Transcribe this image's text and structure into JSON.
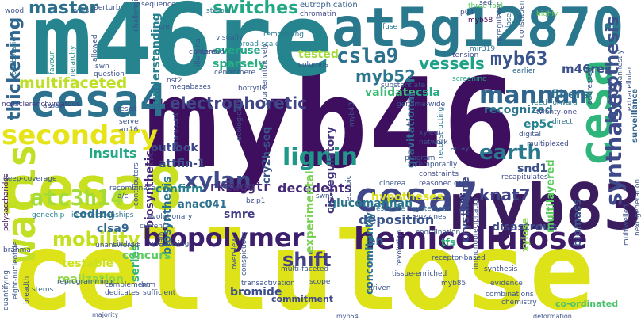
{
  "words": [
    {
      "text": "cellulose",
      "color": "#dde318"
    },
    {
      "text": "myb46",
      "color": "#3e0f5e"
    },
    {
      "text": "m46re",
      "color": "#25848e"
    },
    {
      "text": "at5g12870",
      "color": "#2a788e"
    },
    {
      "text": "myb83",
      "color": "#3b1c5e"
    },
    {
      "text": "cesa8",
      "color": "#c8e020"
    },
    {
      "text": "cesa4",
      "color": "#2c728e"
    },
    {
      "text": "cesa7",
      "color": "#3f4788"
    },
    {
      "text": "cesa",
      "color": "#2fb47c"
    },
    {
      "text": "walls",
      "color": "#c2df23"
    },
    {
      "text": "hemicellulose",
      "color": "#3d1b66"
    },
    {
      "text": "biopolymer",
      "color": "#3e1f6d"
    },
    {
      "text": "secondary",
      "color": "#e6e419"
    },
    {
      "text": "atc3h14",
      "color": "#a5db36"
    },
    {
      "text": "lignin",
      "color": "#1f978b"
    },
    {
      "text": "xylan",
      "color": "#3e4a89"
    },
    {
      "text": "synthases",
      "color": "#3e4989"
    },
    {
      "text": "electrophoretic",
      "color": "#404688"
    },
    {
      "text": "multifaceted",
      "color": "#bddf26"
    },
    {
      "text": "master",
      "color": "#2d708e"
    },
    {
      "text": "switches",
      "color": "#22a884"
    },
    {
      "text": "csla9",
      "color": "#2c718e"
    },
    {
      "text": "myb63",
      "color": "#3a548c"
    },
    {
      "text": "vessels",
      "color": "#1fa188"
    },
    {
      "text": "thickening",
      "color": "#31678e"
    },
    {
      "text": "mannan",
      "color": "#32658e"
    },
    {
      "text": "hypothesis",
      "color": "#3b528b"
    },
    {
      "text": "earth",
      "color": "#2a788e"
    },
    {
      "text": "knat7",
      "color": "#404387"
    },
    {
      "text": "mobility",
      "color": "#c5e021"
    },
    {
      "text": "shift",
      "color": "#423f85"
    },
    {
      "text": "myb52",
      "color": "#2b758e"
    },
    {
      "text": "m46res",
      "color": "#3c4f8a"
    },
    {
      "text": "tested",
      "color": "#a2da37"
    },
    {
      "text": "fibers",
      "color": "#2e6f8e"
    },
    {
      "text": "ep5c",
      "color": "#25848e"
    },
    {
      "text": "hypotheses",
      "color": "#dde318"
    },
    {
      "text": "deposition",
      "color": "#3a548c"
    },
    {
      "text": "decedents",
      "color": "#472d7b"
    },
    {
      "text": "rktwggtr",
      "color": "#472c7a"
    },
    {
      "text": "coding",
      "color": "#2e6d8e"
    },
    {
      "text": "clsa9",
      "color": "#31678e"
    },
    {
      "text": "testable",
      "color": "#cde11d"
    },
    {
      "text": "confirm",
      "color": "#26818e"
    },
    {
      "text": "outlook",
      "color": "#3e4989"
    },
    {
      "text": "insults",
      "color": "#22a884"
    },
    {
      "text": "attfin-1",
      "color": "#3d4d8a"
    },
    {
      "text": "glucomannan",
      "color": "#2a778e"
    },
    {
      "text": "snd1",
      "color": "#3b528b"
    },
    {
      "text": "crystalline",
      "color": "#3f4889"
    },
    {
      "text": "disastrous",
      "color": "#3e4c8a"
    },
    {
      "text": "multilayered",
      "color": "#5ec962"
    },
    {
      "text": "biomass",
      "color": "#3a548c"
    },
    {
      "text": "en",
      "color": "#33638d"
    },
    {
      "text": "smre",
      "color": "#433e85"
    },
    {
      "text": "anac041",
      "color": "#2c718e"
    },
    {
      "text": "biosynthetic",
      "color": "#472a7a"
    },
    {
      "text": "biosynthesis",
      "color": "#2c718e"
    },
    {
      "text": "experimental",
      "color": "#7ad151"
    },
    {
      "text": "series",
      "color": "#35b779"
    },
    {
      "text": "concurs",
      "color": "#5ec962"
    },
    {
      "text": "realization",
      "color": "#8fd744"
    },
    {
      "text": "bromide",
      "color": "#3c4f8a"
    },
    {
      "text": "recognized",
      "color": "#2b758e"
    },
    {
      "text": "validate",
      "color": "#3bbb75"
    },
    {
      "text": "csla",
      "color": "#25ac82"
    },
    {
      "text": "understanding",
      "color": "#26828e"
    },
    {
      "text": "sparsely",
      "color": "#29af7f"
    },
    {
      "text": "overuse",
      "color": "#22a884"
    },
    {
      "text": "cis-regulatory",
      "color": "#453781"
    },
    {
      "text": "cry2h-seq",
      "color": "#3a548c"
    },
    {
      "text": "gravitational",
      "color": "#31688e"
    },
    {
      "text": "concomitantly",
      "color": "#2c718e"
    },
    {
      "text": "tfs",
      "color": "#2fb47c"
    },
    {
      "text": "xylose",
      "color": "#86d549"
    },
    {
      "text": "commitment",
      "color": "#3e4a89"
    },
    {
      "text": "surveillance",
      "color": "#32658e"
    },
    {
      "text": "co-ordinated",
      "color": "#4ac16d"
    },
    {
      "text": "eutrophication",
      "color": "#35608d"
    },
    {
      "text": "chromatin",
      "color": "#3e4a89"
    },
    {
      "text": "remodeling",
      "color": "#2a788e"
    },
    {
      "text": "visually",
      "color": "#34608d"
    },
    {
      "text": "broad-scale",
      "color": "#26828e"
    },
    {
      "text": "wood",
      "color": "#3b528b"
    },
    {
      "text": "swi/snf",
      "color": "#31668e"
    },
    {
      "text": "steroid",
      "color": "#2a768e"
    },
    {
      "text": "collaboration",
      "color": "#2d708e"
    },
    {
      "text": "hierarchy",
      "color": "#228c8d"
    },
    {
      "text": "favour",
      "color": "#1f9a8a"
    },
    {
      "text": "assay",
      "color": "#3b528b"
    },
    {
      "text": "nonsclerenchymatous",
      "color": "#433e85"
    },
    {
      "text": "polysaccharides",
      "color": "#440154"
    },
    {
      "text": "genechip",
      "color": "#26828e"
    },
    {
      "text": "interrelationships",
      "color": "#2b758e"
    },
    {
      "text": "brahma",
      "color": "#3e4989"
    },
    {
      "text": "quantifying",
      "color": "#3b528b"
    },
    {
      "text": "stems",
      "color": "#31688e"
    },
    {
      "text": "digital",
      "color": "#3b528b"
    },
    {
      "text": "multiplexed",
      "color": "#3e4c8a"
    },
    {
      "text": "feed-forward",
      "color": "#2a788e"
    },
    {
      "text": "twenty-one",
      "color": "#3f4889"
    },
    {
      "text": "direct",
      "color": "#2c718e"
    },
    {
      "text": "earlier",
      "color": "#31688e"
    },
    {
      "text": "screening",
      "color": "#22a884"
    },
    {
      "text": "mir319",
      "color": "#2c718e"
    },
    {
      "text": "tension",
      "color": "#3e4a89"
    },
    {
      "text": "myb58",
      "color": "#440154"
    },
    {
      "text": "fuse",
      "color": "#2a788e"
    },
    {
      "text": "constituent",
      "color": "#3b528b"
    },
    {
      "text": "upregulated",
      "color": "#3b528b"
    },
    {
      "text": "close",
      "color": "#2c718e"
    },
    {
      "text": "pull",
      "color": "#3f4889"
    },
    {
      "text": "three-fold",
      "color": "#5ec962"
    },
    {
      "text": "sed",
      "color": "#3b528b"
    },
    {
      "text": "highly",
      "color": "#7ad151"
    },
    {
      "text": "addressed",
      "color": "#3b528b"
    },
    {
      "text": "extracellular",
      "color": "#3b528b"
    },
    {
      "text": "reconstructing",
      "color": "#2a788e"
    },
    {
      "text": "xylem",
      "color": "#3e4a89"
    },
    {
      "text": "program",
      "color": "#3b528b"
    },
    {
      "text": "array",
      "color": "#3b528b"
    },
    {
      "text": "network",
      "color": "#3b528b"
    },
    {
      "text": "temporarily",
      "color": "#3b528b"
    },
    {
      "text": "constraints",
      "color": "#3e4989"
    },
    {
      "text": "reasoned",
      "color": "#3e4989"
    },
    {
      "text": "cinerea",
      "color": "#3b528b"
    },
    {
      "text": "cost",
      "color": "#3b528b"
    },
    {
      "text": "recapitulates",
      "color": "#3e4989"
    },
    {
      "text": "essence",
      "color": "#2a788e"
    },
    {
      "text": "systematic",
      "color": "#31688e"
    },
    {
      "text": "enzymes",
      "color": "#3b528b"
    },
    {
      "text": "synthesis",
      "color": "#3e4989"
    },
    {
      "text": "evidence",
      "color": "#3b528b"
    },
    {
      "text": "combinations",
      "color": "#3b528b"
    },
    {
      "text": "chemistry",
      "color": "#3b528b"
    },
    {
      "text": "deformation",
      "color": "#3b528b"
    },
    {
      "text": "next-generation",
      "color": "#3b528b"
    },
    {
      "text": "multiwelled",
      "color": "#3b528b"
    },
    {
      "text": "immunoprecipitation",
      "color": "#3b528b"
    },
    {
      "text": "tissue-enriched",
      "color": "#3b528b"
    },
    {
      "text": "scope",
      "color": "#3b528b"
    },
    {
      "text": "driven",
      "color": "#3b528b"
    },
    {
      "text": "revolution",
      "color": "#3b528b"
    },
    {
      "text": "receptor-based",
      "color": "#3b528b"
    },
    {
      "text": "myb85",
      "color": "#3b528b"
    },
    {
      "text": "myb54",
      "color": "#3b528b"
    },
    {
      "text": "multi-faceted",
      "color": "#3b528b"
    },
    {
      "text": "bzip1",
      "color": "#3b528b"
    },
    {
      "text": "overview",
      "color": "#3b528b"
    },
    {
      "text": "conspicuous",
      "color": "#3b528b"
    },
    {
      "text": "transactivation",
      "color": "#3b528b"
    },
    {
      "text": "swns",
      "color": "#3b528b"
    },
    {
      "text": "ectopic",
      "color": "#3b528b"
    },
    {
      "text": "coordination",
      "color": "#3b528b"
    },
    {
      "text": "spread",
      "color": "#3b528b"
    },
    {
      "text": "illumina",
      "color": "#3b528b"
    },
    {
      "text": "centromere",
      "color": "#3b528b"
    },
    {
      "text": "botrytis",
      "color": "#3b528b"
    },
    {
      "text": "megabases",
      "color": "#3b528b"
    },
    {
      "text": "counterintuitively",
      "color": "#3b528b"
    },
    {
      "text": "paramount",
      "color": "#3b528b"
    },
    {
      "text": "ecologically",
      "color": "#3b528b"
    },
    {
      "text": "deep-coverage",
      "color": "#3b528b"
    },
    {
      "text": "recombinase",
      "color": "#3b528b"
    },
    {
      "text": "a/c",
      "color": "#3b528b"
    },
    {
      "text": "contributors",
      "color": "#3b528b"
    },
    {
      "text": "evolutionary",
      "color": "#3b528b"
    },
    {
      "text": "current",
      "color": "#3b528b"
    },
    {
      "text": "cin-tcps",
      "color": "#3b528b"
    },
    {
      "text": "unanswered",
      "color": "#3b528b"
    },
    {
      "text": "uncovering",
      "color": "#3b528b"
    },
    {
      "text": "gain",
      "color": "#3b528b"
    },
    {
      "text": "reprogramming",
      "color": "#3b528b"
    },
    {
      "text": "complement",
      "color": "#3b528b"
    },
    {
      "text": "brm",
      "color": "#3b528b"
    },
    {
      "text": "dedicates",
      "color": "#3b528b"
    },
    {
      "text": "sufficient",
      "color": "#3b528b"
    },
    {
      "text": "majority",
      "color": "#3b528b"
    },
    {
      "text": "eight-nucleotide",
      "color": "#3b528b"
    },
    {
      "text": "breadth",
      "color": "#3b528b"
    },
    {
      "text": "resist",
      "color": "#3b528b"
    },
    {
      "text": "serve",
      "color": "#3b528b"
    },
    {
      "text": "arr16",
      "color": "#3b528b"
    },
    {
      "text": "swn",
      "color": "#3b528b"
    },
    {
      "text": "question",
      "color": "#3b528b"
    },
    {
      "text": "perturb",
      "color": "#3b528b"
    },
    {
      "text": "allowed",
      "color": "#3b528b"
    },
    {
      "text": "challenging",
      "color": "#3b528b"
    },
    {
      "text": "sequence",
      "color": "#3b528b"
    },
    {
      "text": "cre",
      "color": "#3b528b"
    },
    {
      "text": "content",
      "color": "#3b528b"
    },
    {
      "text": "nst2",
      "color": "#3b528b"
    },
    {
      "text": "columns",
      "color": "#3b528b"
    },
    {
      "text": "substantiate",
      "color": "#3b528b"
    },
    {
      "text": "genome-wide",
      "color": "#3b528b"
    },
    {
      "text": "myb43",
      "color": "#3b528b"
    },
    {
      "text": "vnd6",
      "color": "#3b528b"
    },
    {
      "text": "manifestly",
      "color": "#3b528b"
    },
    {
      "text": "nanostructure",
      "color": "#3b528b"
    }
  ]
}
